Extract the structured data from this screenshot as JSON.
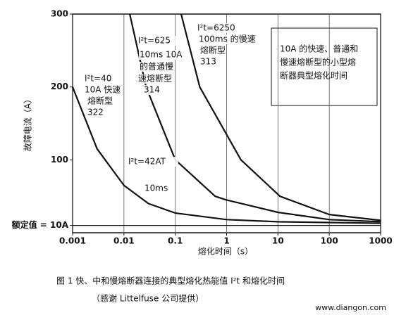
{
  "chart_data": {
    "type": "line",
    "ylabel": "故障电流（A）",
    "xlabel": "熔化时间（s）",
    "log_x": true,
    "grid": true,
    "xlim": [
      0.001,
      1000
    ],
    "xticks": [
      0.001,
      0.01,
      0.1,
      1,
      10,
      100,
      1000
    ],
    "ylim": [
      0,
      300
    ],
    "yticks": [
      {
        "value": 10,
        "label": "额定值 = 10A"
      },
      100,
      200,
      300
    ],
    "series": [
      {
        "color": "#111111",
        "x": [
          0.001,
          0.003,
          0.01,
          0.03,
          0.1,
          1,
          10,
          100,
          1000
        ],
        "values": [
          200,
          115,
          65,
          40,
          27,
          18,
          15,
          14,
          13
        ]
      },
      {
        "color": "#111111",
        "x": [
          0.013,
          0.027,
          0.1,
          0.6,
          1,
          10,
          100,
          1000
        ],
        "values": [
          300,
          200,
          100,
          50,
          45,
          28,
          18,
          15
        ]
      },
      {
        "color": "#111111",
        "x": [
          0.13,
          0.3,
          1.9,
          11,
          100,
          1000
        ],
        "values": [
          300,
          200,
          100,
          50,
          25,
          17
        ]
      }
    ],
    "annotations": [
      "I²t=40",
      "10A 快速",
      "熔断型",
      "322",
      "I²t=625",
      "10ms 10A",
      "的普通慢",
      "速熔断型",
      "314",
      "I²t=6250",
      "100ms 的慢速",
      "熔断型",
      "313",
      "I²t=42AT",
      "10ms"
    ],
    "box": [
      "10A 的快速、普通和",
      "慢速熔断型的小型熔",
      "断器典型熔化时间"
    ]
  },
  "caption": [
    "图 1  快、中和慢熔断器连接的典型熔化热能值 I²t 和熔化时间",
    "（感谢 Littelfuse 公司提供）"
  ],
  "watermark": "www.diangon.com"
}
